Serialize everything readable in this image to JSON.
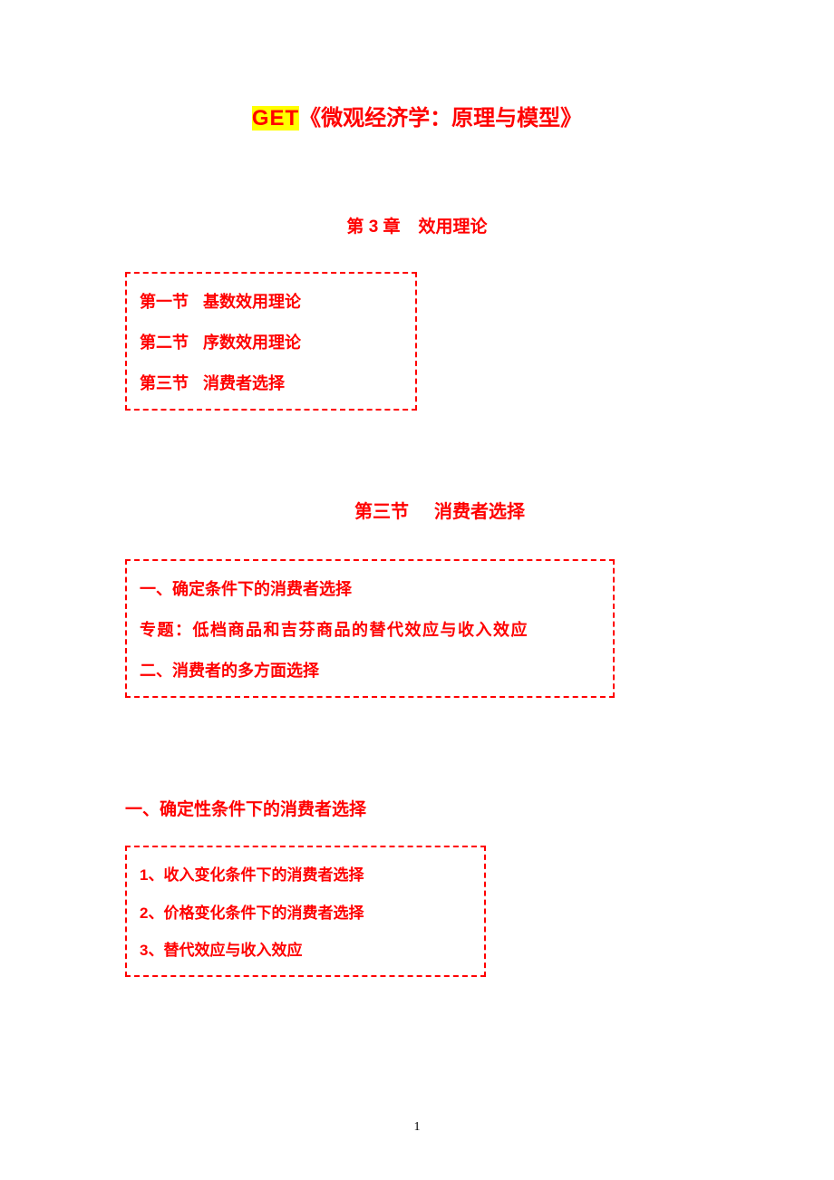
{
  "title": {
    "get": "GET",
    "text": "《微观经济学：原理与模型》"
  },
  "chapter": {
    "label": "第 3 章",
    "name": "效用理论"
  },
  "box1": {
    "items": [
      {
        "label": "第一节",
        "text": "基数效用理论"
      },
      {
        "label": "第二节",
        "text": "序数效用理论"
      },
      {
        "label": "第三节",
        "text": "消费者选择"
      }
    ]
  },
  "section": {
    "label": "第三节",
    "name": "消费者选择"
  },
  "box2": {
    "items": [
      {
        "text": "一、确定条件下的消费者选择",
        "cls": "item-1"
      },
      {
        "text": "专题：低档商品和吉芬商品的替代效应与收入效应",
        "cls": "item-2"
      },
      {
        "text": "二、消费者的多方面选择",
        "cls": "item-3"
      }
    ]
  },
  "subsection": {
    "title": "一、确定性条件下的消费者选择"
  },
  "box3": {
    "items": [
      {
        "text": "1、收入变化条件下的消费者选择"
      },
      {
        "text": "2、价格变化条件下的消费者选择"
      },
      {
        "text": "3、替代效应与收入效应"
      }
    ]
  },
  "pageNumber": "1",
  "colors": {
    "red": "#ff0000",
    "yellow": "#ffff00",
    "white": "#ffffff",
    "black": "#000000"
  }
}
